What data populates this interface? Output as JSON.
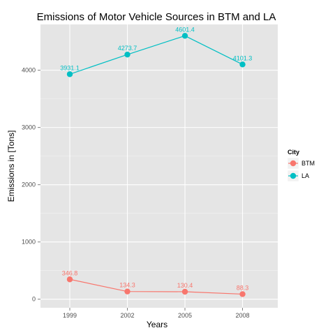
{
  "chart_data": {
    "type": "line",
    "title": "Emissions of Motor Vehicle Sources in BTM and LA",
    "xlabel": "Years",
    "ylabel": "Emissions in [Tons]",
    "x": [
      "1999",
      "2002",
      "2005",
      "2008"
    ],
    "y_ticks": [
      0,
      1000,
      2000,
      3000,
      4000
    ],
    "y_tick_labels": [
      "0",
      "1000",
      "2000",
      "3000",
      "4000"
    ],
    "ylim": [
      -150,
      4800
    ],
    "grid": true,
    "legend": {
      "title": "City",
      "position": "right"
    },
    "series": [
      {
        "name": "BTM",
        "color": "#F8766D",
        "values": [
          346.8,
          134.3,
          130.4,
          88.3
        ],
        "labels": [
          "346.8",
          "134.3",
          "130.4",
          "88.3"
        ]
      },
      {
        "name": "LA",
        "color": "#00BFC4",
        "values": [
          3931.1,
          4273.7,
          4601.4,
          4101.3
        ],
        "labels": [
          "3931.1",
          "4273.7",
          "4601.4",
          "4101.3"
        ]
      }
    ],
    "panel_color": "#E5E5E5",
    "grid_color": "#FFFFFF"
  }
}
